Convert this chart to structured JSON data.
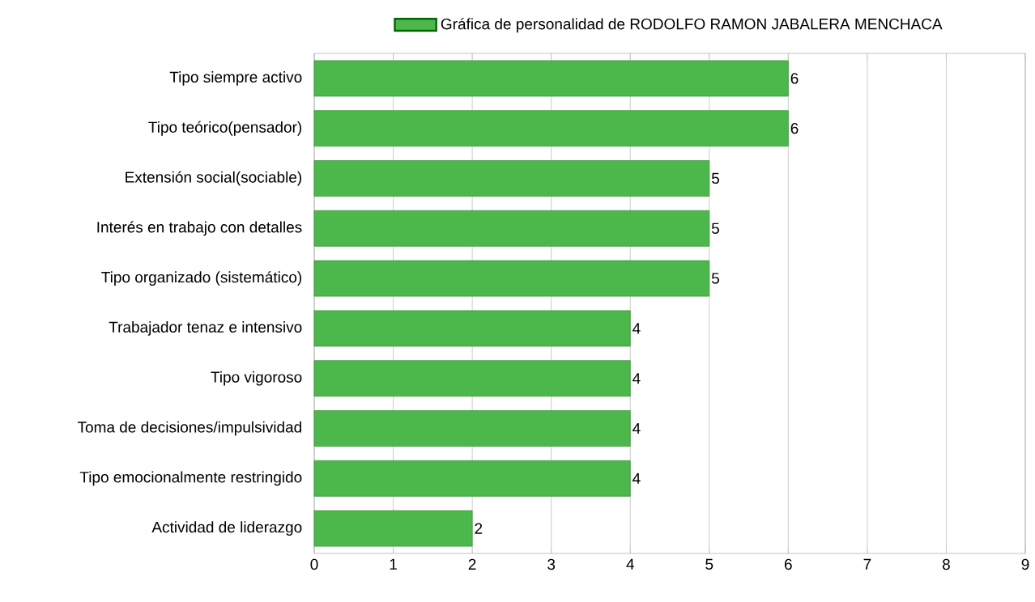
{
  "chart_data": {
    "type": "bar",
    "orientation": "horizontal",
    "categories": [
      "Tipo siempre activo",
      "Tipo teórico(pensador)",
      "Extensión social(sociable)",
      "Interés en trabajo con detalles",
      "Tipo organizado (sistemático)",
      "Trabajador tenaz e intensivo",
      "Tipo vigoroso",
      "Toma de decisiones/impulsividad",
      "Tipo emocionalmente restringido",
      "Actividad de liderazgo"
    ],
    "series": [
      {
        "name": "Gráfica de personalidad de RODOLFO RAMON JABALERA MENCHACA",
        "color": "#4cb84c",
        "values": [
          6,
          6,
          5,
          5,
          5,
          4,
          4,
          4,
          4,
          2
        ]
      }
    ],
    "xlim": [
      0,
      9
    ],
    "xticks": [
      0,
      1,
      2,
      3,
      4,
      5,
      6,
      7,
      8,
      9
    ],
    "grid": "x",
    "legend": "top",
    "data_labels": true
  }
}
